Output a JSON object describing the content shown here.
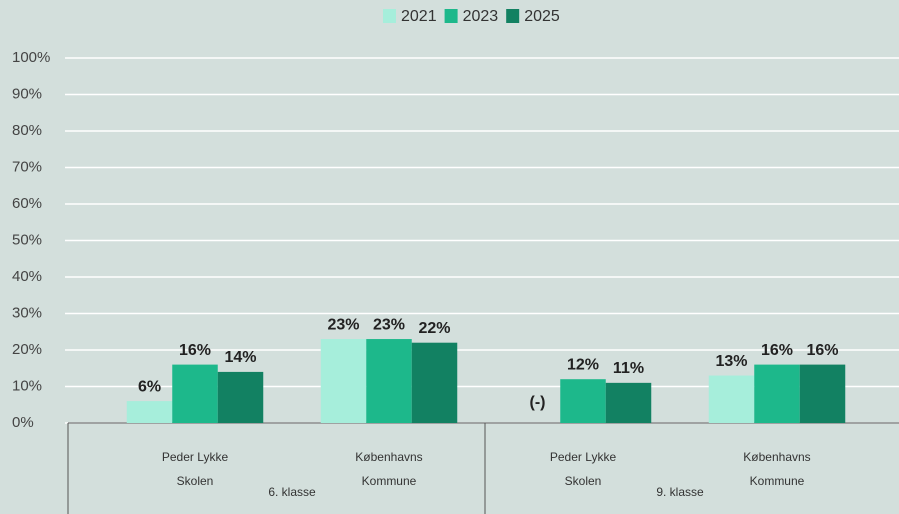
{
  "chart_data": {
    "type": "bar",
    "categories": [
      [
        "Peder Lykke",
        "Skolen"
      ],
      [
        "Københavns",
        "Kommune"
      ],
      [
        "Peder Lykke",
        "Skolen"
      ],
      [
        "Københavns",
        "Kommune"
      ]
    ],
    "groups": [
      {
        "label": "6. klasse",
        "span": 2
      },
      {
        "label": "9. klasse",
        "span": 2
      }
    ],
    "series": [
      {
        "name": "2021",
        "color": "#a6eedb",
        "values": [
          6,
          23,
          null,
          13
        ],
        "value_labels": [
          "6%",
          "23%",
          "(-)",
          "13%"
        ]
      },
      {
        "name": "2023",
        "color": "#1db88b",
        "values": [
          16,
          23,
          12,
          16
        ],
        "value_labels": [
          "16%",
          "23%",
          "12%",
          "16%"
        ]
      },
      {
        "name": "2025",
        "color": "#128162",
        "values": [
          14,
          22,
          11,
          16
        ],
        "value_labels": [
          "14%",
          "22%",
          "11%",
          "16%"
        ]
      }
    ],
    "ylim": [
      0,
      100
    ],
    "yticks": [
      {
        "value": 0,
        "label": "0%"
      },
      {
        "value": 10,
        "label": "10%"
      },
      {
        "value": 20,
        "label": "20%"
      },
      {
        "value": 30,
        "label": "30%"
      },
      {
        "value": 40,
        "label": "40%"
      },
      {
        "value": 50,
        "label": "50%"
      },
      {
        "value": 60,
        "label": "60%"
      },
      {
        "value": 70,
        "label": "70%"
      },
      {
        "value": 80,
        "label": "80%"
      },
      {
        "value": 90,
        "label": "90%"
      },
      {
        "value": 100,
        "label": "100%"
      }
    ],
    "grid": true,
    "legend": "top"
  }
}
